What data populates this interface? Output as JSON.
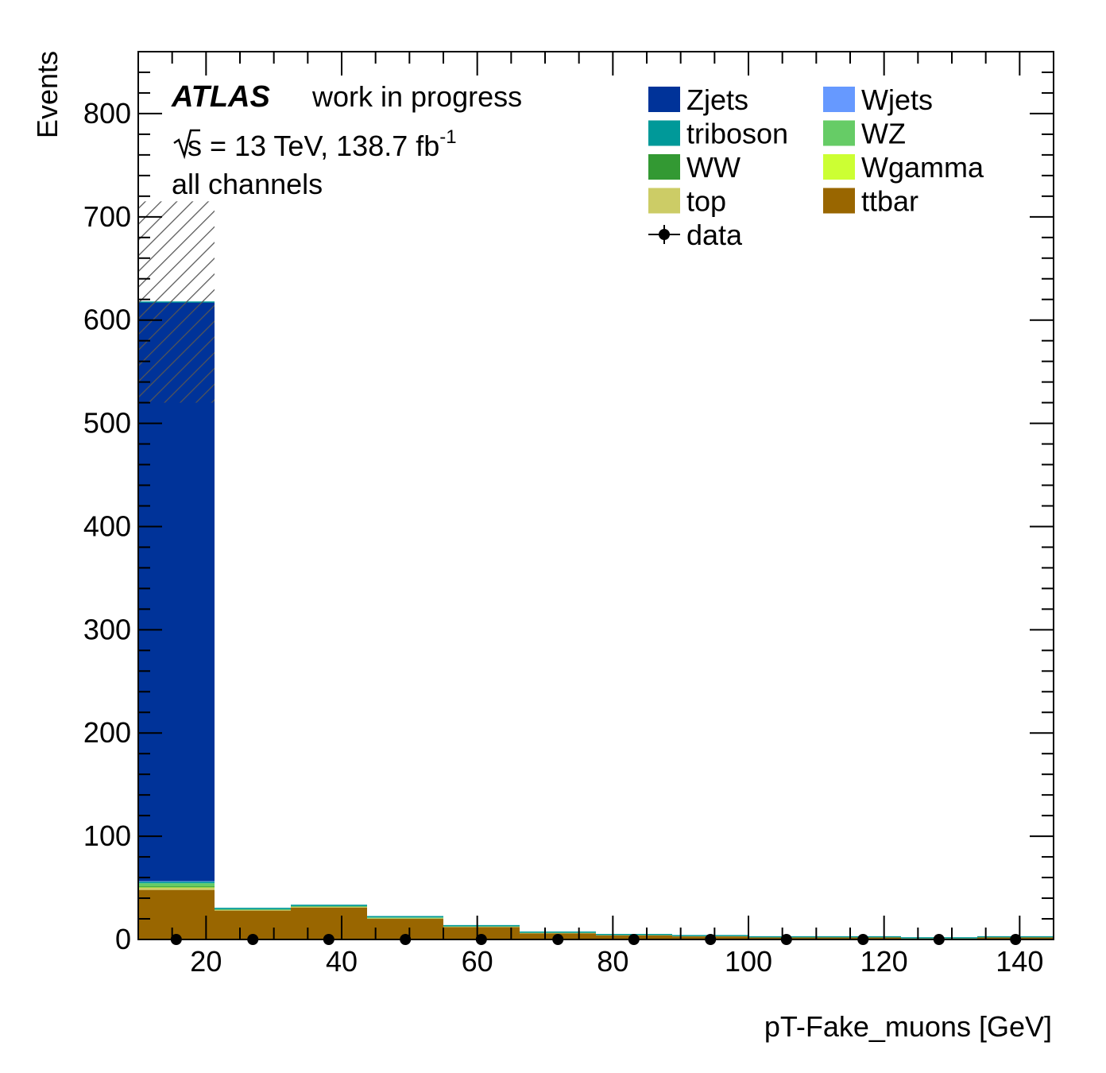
{
  "chart_data": {
    "type": "bar",
    "stacked": true,
    "title": "",
    "xlabel": "pT-Fake_muons [GeV]",
    "ylabel": "Events",
    "xlim": [
      10,
      145
    ],
    "ylim": [
      0,
      860
    ],
    "x_tick_labels": [
      "20",
      "40",
      "60",
      "80",
      "100",
      "120",
      "140"
    ],
    "y_tick_labels": [
      "0",
      "100",
      "200",
      "300",
      "400",
      "500",
      "600",
      "700",
      "800"
    ],
    "bin_edges": [
      10,
      21.25,
      32.5,
      43.75,
      55,
      66.25,
      77.5,
      88.75,
      100,
      111.25,
      122.5,
      133.75,
      145
    ],
    "series": [
      {
        "name": "ttbar",
        "color": "#996600",
        "values": [
          48,
          28,
          31,
          20,
          12,
          6,
          4,
          3,
          2,
          2,
          1,
          2
        ]
      },
      {
        "name": "top",
        "color": "#cccc66",
        "values": [
          2,
          0.5,
          0.5,
          0.5,
          0.3,
          0.2,
          0.1,
          0.1,
          0.1,
          0.1,
          0.1,
          0.1
        ]
      },
      {
        "name": "Wgamma",
        "color": "#ccff33",
        "values": [
          0.5,
          0.1,
          0.1,
          0.1,
          0.1,
          0.1,
          0.1,
          0.1,
          0.1,
          0.1,
          0.1,
          0.1
        ]
      },
      {
        "name": "WW",
        "color": "#339933",
        "values": [
          1,
          0.3,
          0.3,
          0.3,
          0.2,
          0.1,
          0.1,
          0.1,
          0.1,
          0.1,
          0.1,
          0.1
        ]
      },
      {
        "name": "WZ",
        "color": "#66cc66",
        "values": [
          3,
          0.5,
          0.5,
          0.5,
          0.3,
          0.3,
          0.2,
          0.2,
          0.1,
          0.1,
          0.1,
          0.1
        ]
      },
      {
        "name": "triboson",
        "color": "#009999",
        "values": [
          1.5,
          0.5,
          0.5,
          0.5,
          0.4,
          0.3,
          0.2,
          0.2,
          0.1,
          0.1,
          0.1,
          0.1
        ]
      },
      {
        "name": "Wjets",
        "color": "#6699ff",
        "values": [
          0.5,
          0.2,
          0.2,
          0.2,
          0.1,
          0.1,
          0.1,
          0.1,
          0.1,
          0.1,
          0.1,
          0.1
        ]
      },
      {
        "name": "Zjets",
        "color": "#003399",
        "values": [
          561,
          0,
          0,
          0,
          0,
          0,
          0,
          0,
          0,
          0,
          0,
          0
        ]
      }
    ],
    "uncertainty": {
      "low": [
        520
      ],
      "high": [
        715
      ]
    },
    "data_points": {
      "name": "data",
      "x": [
        15.6,
        26.9,
        38.1,
        49.4,
        60.6,
        71.9,
        83.1,
        94.4,
        105.6,
        116.9,
        128.1,
        139.4
      ],
      "y": [
        0,
        0,
        0,
        0,
        0,
        0,
        0,
        0,
        0,
        0,
        0,
        0
      ]
    },
    "grid": false,
    "legend_position": "top-right"
  },
  "annotations": {
    "atlas": "ATLAS",
    "status": "work in progress",
    "energy_pre": "s = 13 TeV, 138.7 fb",
    "energy_sup": "-1",
    "channels": "all channels"
  },
  "legend": [
    {
      "label": "Zjets",
      "color": "#003399"
    },
    {
      "label": "Wjets",
      "color": "#6699ff"
    },
    {
      "label": "triboson",
      "color": "#009999"
    },
    {
      "label": "WZ",
      "color": "#66cc66"
    },
    {
      "label": "WW",
      "color": "#339933"
    },
    {
      "label": "Wgamma",
      "color": "#ccff33"
    },
    {
      "label": "top",
      "color": "#cccc66"
    },
    {
      "label": "ttbar",
      "color": "#996600"
    },
    {
      "label": "data",
      "color": "#000000"
    }
  ]
}
